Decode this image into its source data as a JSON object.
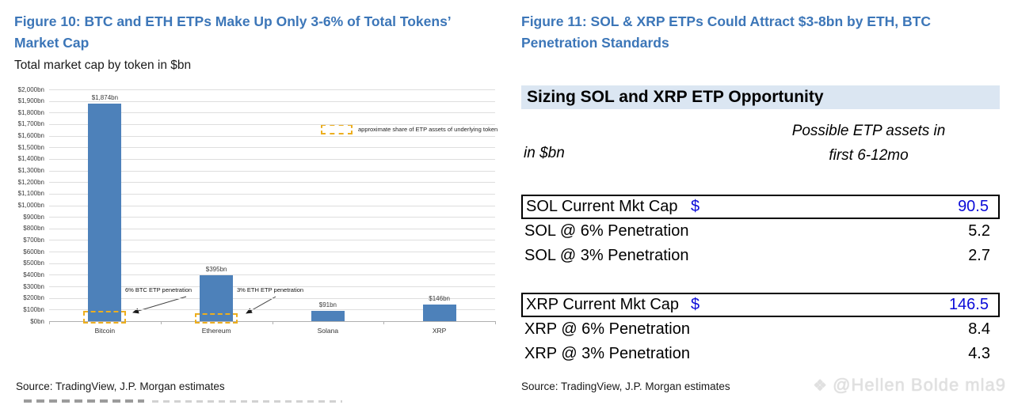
{
  "left_panel": {
    "figure_title": "Figure 10: BTC and ETH ETPs Make Up Only 3-6% of Total Tokens’ Market Cap",
    "subtitle": "Total market cap by token in $bn",
    "annotations": {
      "btc": "6% BTC ETP penetration",
      "eth": "3% ETH ETP penetration"
    },
    "source": "Source: TradingView, J.P. Morgan estimates"
  },
  "chart_data": {
    "type": "bar",
    "categories": [
      "Bitcoin",
      "Ethereum",
      "Solana",
      "XRP"
    ],
    "values": [
      1874,
      395,
      91,
      146
    ],
    "bar_labels": [
      "$1,874bn",
      "$395bn",
      "$91bn",
      "$146bn"
    ],
    "title": "Total market cap by token in $bn",
    "xlabel": "",
    "ylabel": "",
    "ylim": [
      0,
      2000
    ],
    "ytick_step": 100,
    "ytick_format": "$X,XXXbn",
    "grid": true,
    "bar_color": "#4d81ba",
    "highlight_box_color": "#ecae1f",
    "highlighted_categories": [
      "Bitcoin",
      "Ethereum"
    ],
    "legend": "approximate share of ETP assets of underlying token",
    "legend_position": "upper-right"
  },
  "right_panel": {
    "figure_title": "Figure 11: SOL & XRP ETPs Could Attract $3-8bn by ETH, BTC Penetration Standards",
    "table": {
      "title": "Sizing SOL and XRP ETP Opportunity",
      "unit_label": "in $bn",
      "col_header_line1": "Possible ETP assets in",
      "col_header_line2": "first 6-12mo",
      "rows": [
        {
          "label": "SOL Current Mkt Cap",
          "currency": "$",
          "value": "90.5",
          "boxed": true,
          "blue": true
        },
        {
          "label": "SOL @ 6% Penetration",
          "currency": "",
          "value": "5.2",
          "boxed": false,
          "blue": false
        },
        {
          "label": "SOL @ 3% Penetration",
          "currency": "",
          "value": "2.7",
          "boxed": false,
          "blue": false
        },
        {
          "spacer": true
        },
        {
          "label": "XRP Current Mkt Cap",
          "currency": "$",
          "value": "146.5",
          "boxed": true,
          "blue": true
        },
        {
          "label": "XRP @ 6% Penetration",
          "currency": "",
          "value": "8.4",
          "boxed": false,
          "blue": false
        },
        {
          "label": "XRP @ 3% Penetration",
          "currency": "",
          "value": "4.3",
          "boxed": false,
          "blue": false
        }
      ]
    },
    "source": "Source: TradingView, J.P. Morgan estimates"
  },
  "watermark": {
    "icon_glyph": "❖",
    "text": "@Hellen Bolde mla9"
  }
}
